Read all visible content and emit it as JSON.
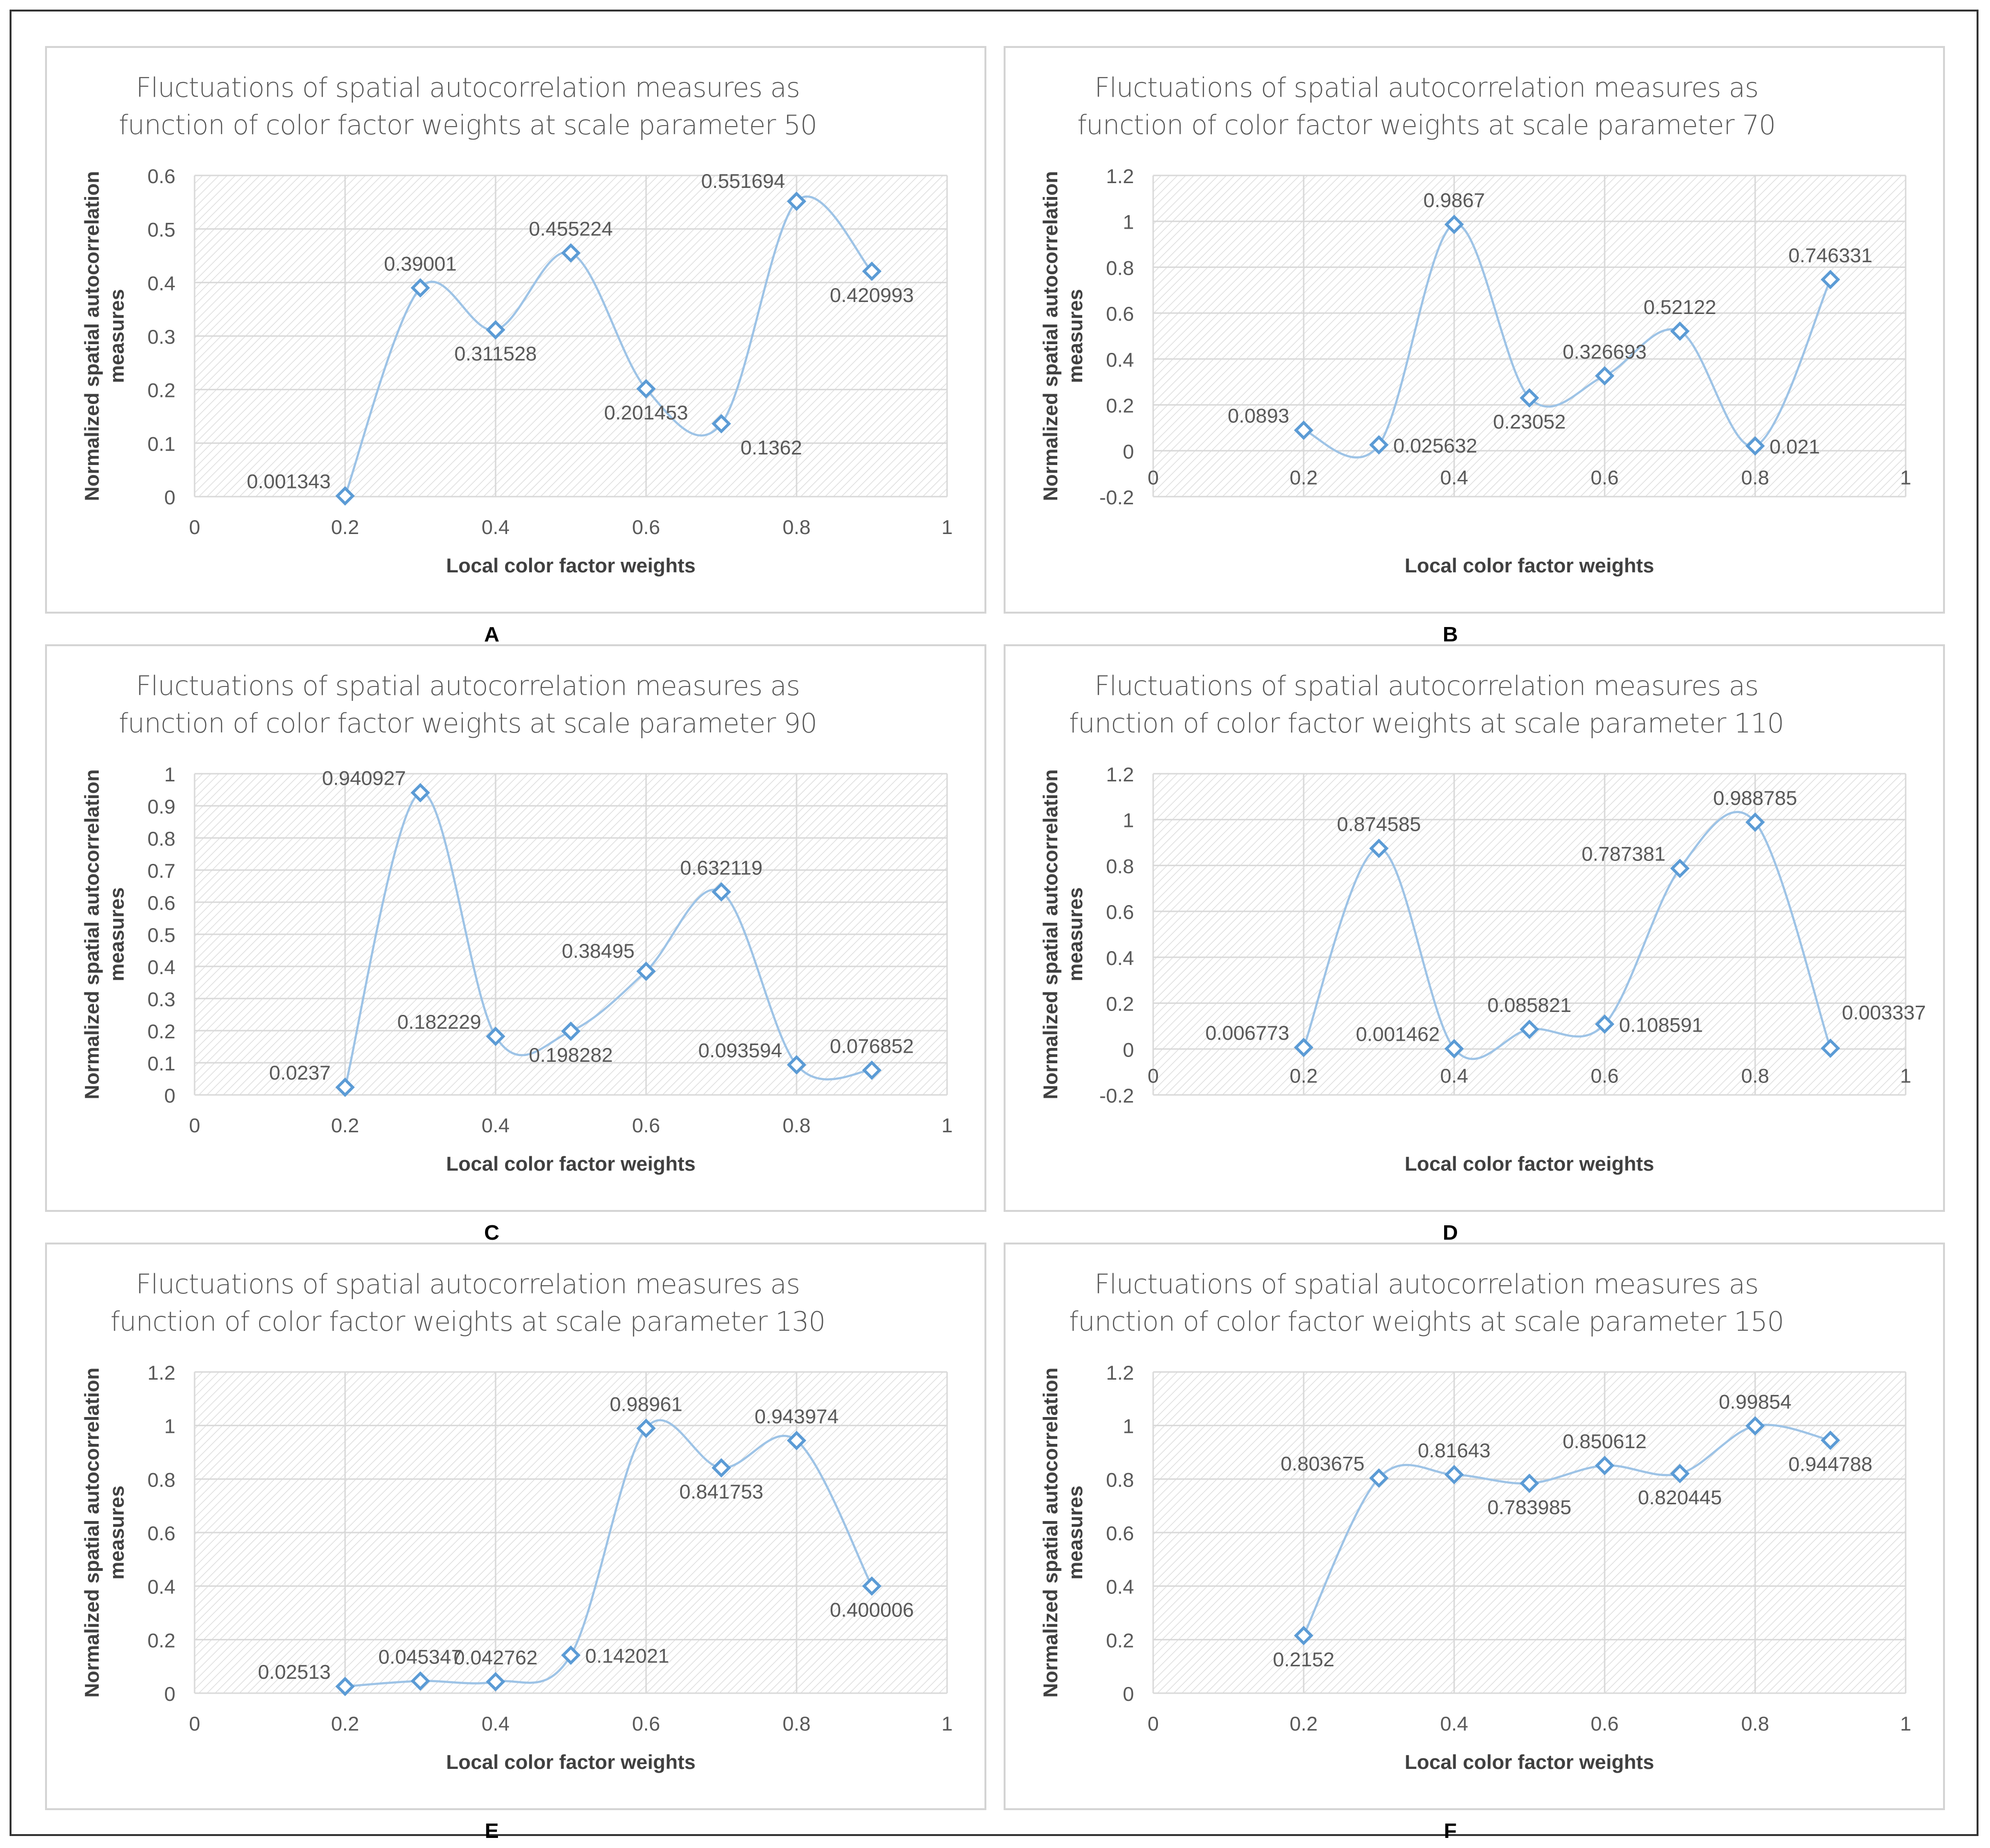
{
  "colors": {
    "line": "#9dc3e6",
    "marker": "#5b9bd5",
    "grid": "#d9d9d9",
    "hatch": "#dedede",
    "panel_border": "#d4d4d4",
    "text": "#595959",
    "title_text": "#595959",
    "axis_title_text": "#404040",
    "label_text": "#000000"
  },
  "chart_data": [
    {
      "type": "scatter",
      "panel_label": "A",
      "title": "Fluctuations of spatial autocorrelation measures as function of color factor weights at scale parameter 50",
      "title_lines": [
        "Fluctuations of spatial autocorrelation measures as",
        "function of color factor weights at scale parameter 50"
      ],
      "xlabel": "Local color factor weights",
      "ylabel_lines": [
        "Normalized spatial autocorrelation",
        "measures"
      ],
      "xlim": [
        0,
        1
      ],
      "ylim": [
        0,
        0.6
      ],
      "xticks": [
        0,
        0.2,
        0.4,
        0.6,
        0.8,
        1
      ],
      "xtick_labels": [
        "0",
        "0.2",
        "0.4",
        "0.6",
        "0.8",
        "1"
      ],
      "yticks": [
        0,
        0.1,
        0.2,
        0.3,
        0.4,
        0.5,
        0.6
      ],
      "ytick_labels": [
        "0",
        "0.1",
        "0.2",
        "0.3",
        "0.4",
        "0.5",
        "0.6"
      ],
      "grid": true,
      "smooth": true,
      "x": [
        0.2,
        0.3,
        0.4,
        0.5,
        0.6,
        0.7,
        0.8,
        0.9
      ],
      "y": [
        0.001343,
        0.39001,
        0.311528,
        0.455224,
        0.201453,
        0.1362,
        0.551694,
        0.420993
      ],
      "point_labels": [
        "0.001343",
        "0.39001",
        "0.311528",
        "0.455224",
        "0.201453",
        "0.1362",
        "0.551694",
        "0.420993"
      ],
      "label_pos": [
        "left",
        "above",
        "below",
        "above",
        "below",
        "below-right",
        "above-left",
        "below"
      ]
    },
    {
      "type": "scatter",
      "panel_label": "B",
      "title": "Fluctuations of spatial autocorrelation measures as function of color factor weights at scale parameter 70",
      "title_lines": [
        "Fluctuations of spatial autocorrelation measures as",
        "function of color factor weights at scale parameter 70"
      ],
      "xlabel": "Local color factor weights",
      "ylabel_lines": [
        "Normalized spatial autocorrelation",
        "measures"
      ],
      "xlim": [
        0,
        1
      ],
      "ylim": [
        -0.2,
        1.2
      ],
      "xticks": [
        0,
        0.2,
        0.4,
        0.6,
        0.8,
        1
      ],
      "xtick_labels": [
        "0",
        "0.2",
        "0.4",
        "0.6",
        "0.8",
        "1"
      ],
      "yticks": [
        -0.2,
        0,
        0.2,
        0.4,
        0.6,
        0.8,
        1,
        1.2
      ],
      "ytick_labels": [
        "-0.2",
        "0",
        "0.2",
        "0.4",
        "0.6",
        "0.8",
        "1",
        "1.2"
      ],
      "grid": true,
      "smooth": true,
      "x": [
        0.2,
        0.3,
        0.4,
        0.5,
        0.6,
        0.7,
        0.8,
        0.9
      ],
      "y": [
        0.0893,
        0.025632,
        0.9867,
        0.23052,
        0.326693,
        0.52122,
        0.021,
        0.746331
      ],
      "point_labels": [
        "0.0893",
        "0.025632",
        "0.9867",
        "0.23052",
        "0.326693",
        "0.52122",
        "0.021",
        "0.746331"
      ],
      "label_pos": [
        "left",
        "right",
        "above",
        "below",
        "above",
        "above",
        "right",
        "above"
      ]
    },
    {
      "type": "scatter",
      "panel_label": "C",
      "title": "Fluctuations of spatial autocorrelation measures as function of color factor weights at scale parameter 90",
      "title_lines": [
        "Fluctuations of spatial autocorrelation measures as",
        "function of color factor weights at scale parameter 90"
      ],
      "xlabel": "Local color factor weights",
      "ylabel_lines": [
        "Normalized spatial autocorrelation",
        "measures"
      ],
      "xlim": [
        0,
        1
      ],
      "ylim": [
        0,
        1
      ],
      "xticks": [
        0,
        0.2,
        0.4,
        0.6,
        0.8,
        1
      ],
      "xtick_labels": [
        "0",
        "0.2",
        "0.4",
        "0.6",
        "0.8",
        "1"
      ],
      "yticks": [
        0,
        0.1,
        0.2,
        0.3,
        0.4,
        0.5,
        0.6,
        0.7,
        0.8,
        0.9,
        1
      ],
      "ytick_labels": [
        "0",
        "0.1",
        "0.2",
        "0.3",
        "0.4",
        "0.5",
        "0.6",
        "0.7",
        "0.8",
        "0.9",
        "1"
      ],
      "grid": true,
      "smooth": true,
      "x": [
        0.2,
        0.3,
        0.4,
        0.5,
        0.6,
        0.7,
        0.8,
        0.9
      ],
      "y": [
        0.0237,
        0.940927,
        0.182229,
        0.198282,
        0.38495,
        0.632119,
        0.093594,
        0.076852
      ],
      "point_labels": [
        "0.0237",
        "0.940927",
        "0.182229",
        "0.198282",
        "0.38495",
        "0.632119",
        "0.093594",
        "0.076852"
      ],
      "label_pos": [
        "left",
        "left",
        "left",
        "below",
        "above-left",
        "above",
        "left",
        "above"
      ]
    },
    {
      "type": "scatter",
      "panel_label": "D",
      "title": "Fluctuations of spatial autocorrelation measures as function of color factor weights at scale parameter 110",
      "title_lines": [
        "Fluctuations of spatial autocorrelation measures as",
        "function of color factor weights at scale parameter 110"
      ],
      "xlabel": "Local color factor weights",
      "ylabel_lines": [
        "Normalized spatial autocorrelation",
        "measures"
      ],
      "xlim": [
        0,
        1
      ],
      "ylim": [
        -0.2,
        1.2
      ],
      "xticks": [
        0,
        0.2,
        0.4,
        0.6,
        0.8,
        1
      ],
      "xtick_labels": [
        "0",
        "0.2",
        "0.4",
        "0.6",
        "0.8",
        "1"
      ],
      "yticks": [
        -0.2,
        0,
        0.2,
        0.4,
        0.6,
        0.8,
        1,
        1.2
      ],
      "ytick_labels": [
        "-0.2",
        "0",
        "0.2",
        "0.4",
        "0.6",
        "0.8",
        "1",
        "1.2"
      ],
      "grid": true,
      "smooth": true,
      "x": [
        0.2,
        0.3,
        0.4,
        0.5,
        0.6,
        0.7,
        0.8,
        0.9
      ],
      "y": [
        0.006773,
        0.874585,
        0.001462,
        0.085821,
        0.108591,
        0.787381,
        0.988785,
        0.003337
      ],
      "point_labels": [
        "0.006773",
        "0.874585",
        "0.001462",
        "0.085821",
        "0.108591",
        "0.787381",
        "0.988785",
        "0.003337"
      ],
      "label_pos": [
        "left",
        "above",
        "left",
        "above",
        "right",
        "left",
        "above",
        "above-right"
      ]
    },
    {
      "type": "scatter",
      "panel_label": "E",
      "title": "Fluctuations of spatial autocorrelation measures as function of color factor weights at scale parameter 130",
      "title_lines": [
        "Fluctuations of spatial autocorrelation measures as",
        "function of color factor weights at scale parameter 130"
      ],
      "xlabel": "Local color factor weights",
      "ylabel_lines": [
        "Normalized spatial autocorrelation",
        "measures"
      ],
      "xlim": [
        0,
        1
      ],
      "ylim": [
        0,
        1.2
      ],
      "xticks": [
        0,
        0.2,
        0.4,
        0.6,
        0.8,
        1
      ],
      "xtick_labels": [
        "0",
        "0.2",
        "0.4",
        "0.6",
        "0.8",
        "1"
      ],
      "yticks": [
        0,
        0.2,
        0.4,
        0.6,
        0.8,
        1,
        1.2
      ],
      "ytick_labels": [
        "0",
        "0.2",
        "0.4",
        "0.6",
        "0.8",
        "1",
        "1.2"
      ],
      "grid": true,
      "smooth": true,
      "x": [
        0.2,
        0.3,
        0.4,
        0.5,
        0.6,
        0.7,
        0.8,
        0.9
      ],
      "y": [
        0.02513,
        0.045347,
        0.042762,
        0.142021,
        0.98961,
        0.841753,
        0.943974,
        0.400006
      ],
      "point_labels": [
        "0.02513",
        "0.045347",
        "0.042762",
        "0.142021",
        "0.98961",
        "0.841753",
        "0.943974",
        "0.400006"
      ],
      "label_pos": [
        "left",
        "above",
        "above",
        "right",
        "above",
        "below",
        "above",
        "below"
      ]
    },
    {
      "type": "scatter",
      "panel_label": "F",
      "title": "Fluctuations of spatial autocorrelation measures as function of color factor weights at scale parameter 150",
      "title_lines": [
        "Fluctuations of spatial autocorrelation measures as",
        "function of color factor weights at scale parameter 150"
      ],
      "xlabel": "Local color factor weights",
      "ylabel_lines": [
        "Normalized spatial autocorrelation",
        "measures"
      ],
      "xlim": [
        0,
        1
      ],
      "ylim": [
        0,
        1.2
      ],
      "xticks": [
        0,
        0.2,
        0.4,
        0.6,
        0.8,
        1
      ],
      "xtick_labels": [
        "0",
        "0.2",
        "0.4",
        "0.6",
        "0.8",
        "1"
      ],
      "yticks": [
        0,
        0.2,
        0.4,
        0.6,
        0.8,
        1,
        1.2
      ],
      "ytick_labels": [
        "0",
        "0.2",
        "0.4",
        "0.6",
        "0.8",
        "1",
        "1.2"
      ],
      "grid": true,
      "smooth": true,
      "x": [
        0.2,
        0.3,
        0.4,
        0.5,
        0.6,
        0.7,
        0.8,
        0.9
      ],
      "y": [
        0.2152,
        0.803675,
        0.81643,
        0.783985,
        0.850612,
        0.820445,
        0.99854,
        0.944788
      ],
      "point_labels": [
        "0.2152",
        "0.803675",
        "0.81643",
        "0.783985",
        "0.850612",
        "0.820445",
        "0.99854",
        "0.944788"
      ],
      "label_pos": [
        "below",
        "left",
        "above",
        "below",
        "above",
        "below",
        "above",
        "below"
      ]
    }
  ]
}
